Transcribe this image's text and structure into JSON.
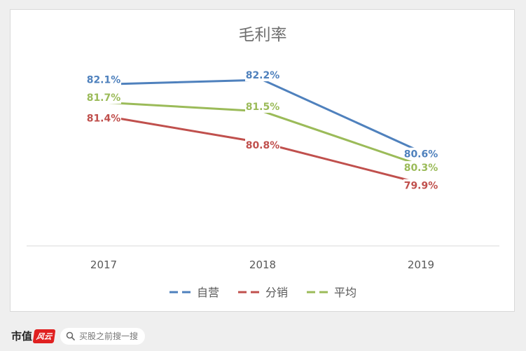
{
  "chart_data": {
    "type": "line",
    "title": "毛利率",
    "categories": [
      "2017",
      "2018",
      "2019"
    ],
    "series": [
      {
        "name": "自营",
        "color": "#4f81bd",
        "values": [
          82.1,
          82.2,
          80.6
        ],
        "labels": [
          "82.1%",
          "82.2%",
          "80.6%"
        ]
      },
      {
        "name": "分销",
        "color": "#c0504d",
        "values": [
          81.4,
          80.8,
          79.9
        ],
        "labels": [
          "81.4%",
          "80.8%",
          "79.9%"
        ]
      },
      {
        "name": "平均",
        "color": "#9bbb59",
        "values": [
          81.7,
          81.5,
          80.3
        ],
        "labels": [
          "81.7%",
          "81.5%",
          "80.3%"
        ]
      }
    ],
    "legend_position": "bottom",
    "grid": false
  },
  "footer": {
    "brand": "市值",
    "brand_mark": "风云",
    "search_placeholder": "买股之前搜一搜",
    "search_icon": "search-icon"
  }
}
